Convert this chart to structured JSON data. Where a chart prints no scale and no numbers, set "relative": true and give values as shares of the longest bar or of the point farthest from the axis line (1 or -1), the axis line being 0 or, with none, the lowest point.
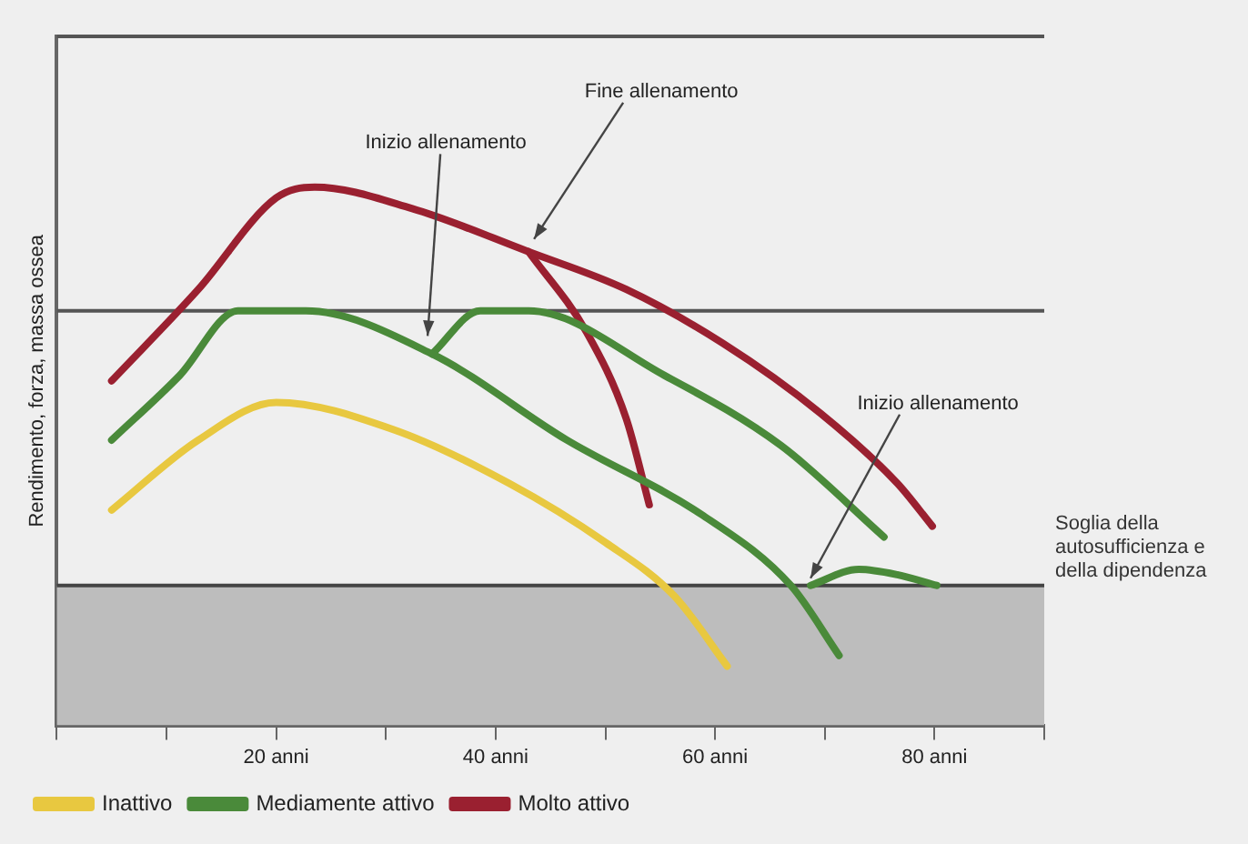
{
  "chart_data": {
    "type": "line",
    "relative": true,
    "xlabel": null,
    "ylabel": "Rendimento, forza, massa ossea",
    "xlim": [
      0,
      90
    ],
    "xticks": [
      {
        "value": 0,
        "label": null
      },
      {
        "value": 10,
        "label": null
      },
      {
        "value": 20,
        "label": "20 anni"
      },
      {
        "value": 30,
        "label": null
      },
      {
        "value": 40,
        "label": "40 anni"
      },
      {
        "value": 50,
        "label": null
      },
      {
        "value": 60,
        "label": "60 anni"
      },
      {
        "value": 70,
        "label": null
      },
      {
        "value": 80,
        "label": "80 anni"
      },
      {
        "value": 90,
        "label": null
      }
    ],
    "series": [
      {
        "name": "Inattivo",
        "color": "#e8c840",
        "x": [
          5,
          12.9,
          20,
          30.6,
          41.2,
          50,
          56.3,
          61.1
        ],
        "values": [
          0.4,
          0.53,
          0.6,
          0.55,
          0.45,
          0.34,
          0.24,
          0.11
        ]
      },
      {
        "name": "Mediamente attivo",
        "color": "#4a8a3a",
        "x": [
          5,
          11.2,
          16.5,
          22.7,
          34.2,
          46.5,
          58.9,
          66.9,
          71.3
        ],
        "values": [
          0.53,
          0.65,
          0.77,
          0.77,
          0.69,
          0.53,
          0.39,
          0.26,
          0.13
        ]
      },
      {
        "color": "#4a8a3a",
        "x": [
          34.2,
          38.6,
          43,
          55.4,
          66,
          75.4
        ],
        "values": [
          0.69,
          0.77,
          0.77,
          0.65,
          0.52,
          0.35
        ]
      },
      {
        "color": "#4a8a3a",
        "x": [
          68.7,
          73.1,
          76.6,
          80.2
        ],
        "values": [
          0.26,
          0.29,
          0.28,
          0.26
        ]
      },
      {
        "name": "Molto attivo",
        "color": "#9a2030",
        "x": [
          5,
          12.9,
          20,
          23.5,
          32.4,
          43,
          51.9,
          60.7,
          69.6,
          76.6,
          79.8
        ],
        "values": [
          0.64,
          0.81,
          0.98,
          1.0,
          0.96,
          0.88,
          0.81,
          0.71,
          0.58,
          0.45,
          0.37
        ]
      },
      {
        "color": "#9a2030",
        "x": [
          43,
          48.3,
          51.9,
          54
        ],
        "values": [
          0.88,
          0.73,
          0.57,
          0.41
        ]
      }
    ],
    "ref_lines": [
      {
        "axis": "y",
        "value": 1.28,
        "label": null,
        "color": "#555555"
      },
      {
        "axis": "y",
        "value": 0.77,
        "label": null,
        "color": "#555555"
      },
      {
        "axis": "y",
        "value": 0.26,
        "label": "Soglia della autosufficienza e della dipendenza",
        "color": "#444444"
      }
    ],
    "bands": [
      {
        "axis": "y",
        "from": 0,
        "to": 0.26,
        "label": null,
        "color": "#bdbdbd"
      }
    ],
    "annotations": [
      {
        "text": "Inizio allenamento",
        "x": 33.8,
        "y": 0.71
      },
      {
        "text": "Fine allenamento",
        "x": 43.5,
        "y": 0.89
      },
      {
        "text": "Inizio allenamento",
        "x": 68.7,
        "y": 0.26
      }
    ],
    "legend": "bottom",
    "grid": false,
    "marker": "none",
    "line_style": "solid"
  }
}
